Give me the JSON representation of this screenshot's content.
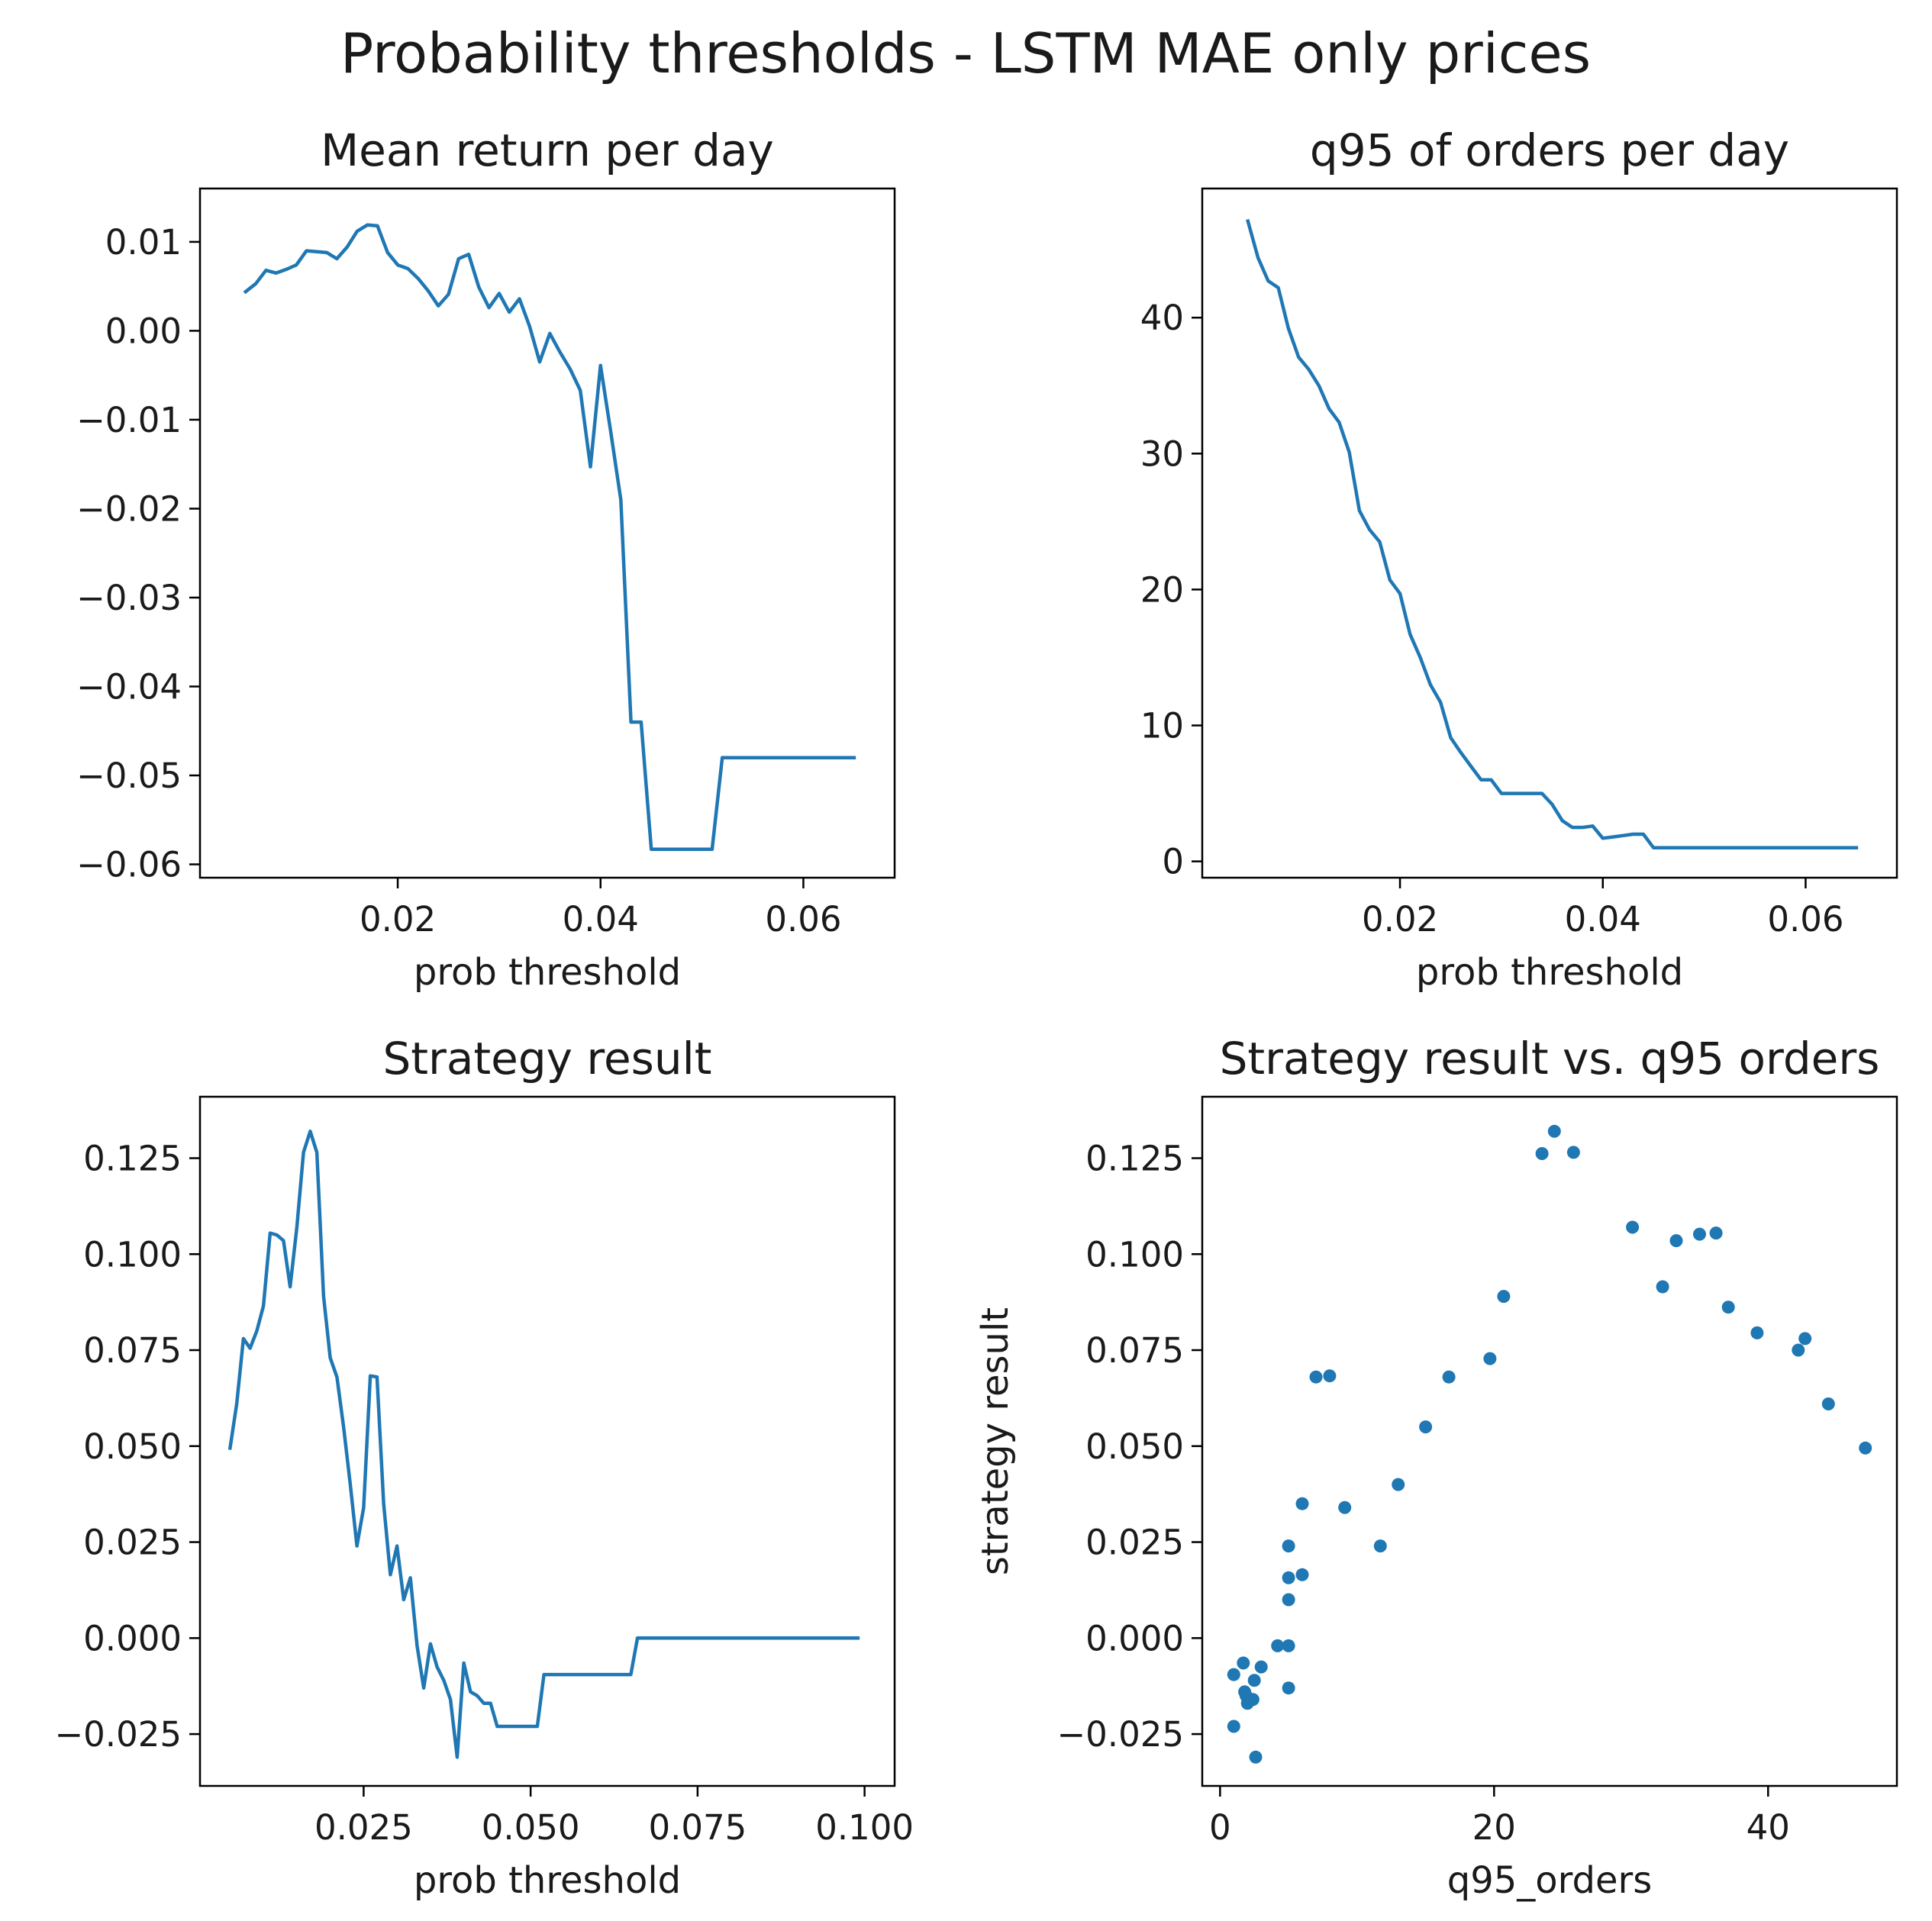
{
  "figure": {
    "title": "Probability thresholds - LSTM MAE only prices",
    "line_color": "#1f77b4"
  },
  "chart_data": [
    {
      "id": "mean-return",
      "type": "line",
      "title": "Mean return per day",
      "xlabel": "prob threshold",
      "ylabel": "",
      "xlim": [
        0.0005,
        0.069
      ],
      "ylim": [
        -0.0615,
        0.016
      ],
      "xticks": [
        {
          "v": 0.02,
          "label": "0.02"
        },
        {
          "v": 0.04,
          "label": "0.04"
        },
        {
          "v": 0.06,
          "label": "0.06"
        }
      ],
      "yticks": [
        {
          "v": 0.01,
          "label": "0.01"
        },
        {
          "v": 0.0,
          "label": "0.00"
        },
        {
          "v": -0.01,
          "label": "−0.01"
        },
        {
          "v": -0.02,
          "label": "−0.02"
        },
        {
          "v": -0.03,
          "label": "−0.03"
        },
        {
          "v": -0.04,
          "label": "−0.04"
        },
        {
          "v": -0.05,
          "label": "−0.05"
        },
        {
          "v": -0.06,
          "label": "−0.06"
        }
      ],
      "x": [
        0.005,
        0.006,
        0.007,
        0.008,
        0.009,
        0.01,
        0.011,
        0.012,
        0.013,
        0.014,
        0.015,
        0.016,
        0.017,
        0.018,
        0.019,
        0.02,
        0.021,
        0.022,
        0.023,
        0.024,
        0.025,
        0.026,
        0.027,
        0.028,
        0.029,
        0.03,
        0.031,
        0.032,
        0.033,
        0.034,
        0.035,
        0.036,
        0.037,
        0.038,
        0.039,
        0.04,
        0.041,
        0.042,
        0.043,
        0.044,
        0.045,
        0.046,
        0.047,
        0.048,
        0.049,
        0.05,
        0.051,
        0.052,
        0.053,
        0.054,
        0.055,
        0.056,
        0.057,
        0.058,
        0.059,
        0.06,
        0.061,
        0.062,
        0.063,
        0.064,
        0.065
      ],
      "y": [
        0.0044,
        0.0053,
        0.0068,
        0.0065,
        0.0069,
        0.0074,
        0.009,
        0.0089,
        0.0088,
        0.0081,
        0.0094,
        0.0112,
        0.0119,
        0.0118,
        0.0088,
        0.0074,
        0.007,
        0.0059,
        0.0045,
        0.0028,
        0.0041,
        0.0081,
        0.0086,
        0.0049,
        0.0026,
        0.0042,
        0.0021,
        0.0036,
        0.0005,
        -0.0035,
        -0.0003,
        -0.0024,
        -0.0043,
        -0.0067,
        -0.0153,
        -0.0039,
        -0.0113,
        -0.019,
        -0.044,
        -0.044,
        -0.0583,
        -0.0583,
        -0.0583,
        -0.0583,
        -0.0583,
        -0.0583,
        -0.0583,
        -0.048,
        -0.048,
        -0.048,
        -0.048,
        -0.048,
        -0.048,
        -0.048,
        -0.048,
        -0.048,
        -0.048,
        -0.048,
        -0.048,
        -0.048,
        -0.048
      ]
    },
    {
      "id": "q95-orders",
      "type": "line",
      "title": "q95 of orders per day",
      "xlabel": "prob threshold",
      "ylabel": "",
      "xlim": [
        0.0005,
        0.069
      ],
      "ylim": [
        -1.2,
        49.5
      ],
      "xticks": [
        {
          "v": 0.02,
          "label": "0.02"
        },
        {
          "v": 0.04,
          "label": "0.04"
        },
        {
          "v": 0.06,
          "label": "0.06"
        }
      ],
      "yticks": [
        {
          "v": 0,
          "label": "0"
        },
        {
          "v": 10,
          "label": "10"
        },
        {
          "v": 20,
          "label": "20"
        },
        {
          "v": 30,
          "label": "30"
        },
        {
          "v": 40,
          "label": "40"
        }
      ],
      "x": [
        0.005,
        0.006,
        0.007,
        0.008,
        0.009,
        0.01,
        0.011,
        0.012,
        0.013,
        0.014,
        0.015,
        0.016,
        0.017,
        0.018,
        0.019,
        0.02,
        0.021,
        0.022,
        0.023,
        0.024,
        0.025,
        0.026,
        0.027,
        0.028,
        0.029,
        0.03,
        0.031,
        0.032,
        0.033,
        0.034,
        0.035,
        0.036,
        0.037,
        0.038,
        0.039,
        0.04,
        0.041,
        0.042,
        0.043,
        0.044,
        0.045,
        0.046,
        0.047,
        0.048,
        0.049,
        0.05,
        0.051,
        0.052,
        0.053,
        0.054,
        0.055,
        0.056,
        0.057,
        0.058,
        0.059,
        0.06,
        0.061,
        0.062,
        0.063,
        0.064,
        0.065
      ],
      "y": [
        47.1,
        44.4,
        42.7,
        42.2,
        39.2,
        37.1,
        36.2,
        35.0,
        33.3,
        32.3,
        30.1,
        25.8,
        24.4,
        23.5,
        20.7,
        19.7,
        16.7,
        15.0,
        13.0,
        11.7,
        9.1,
        8.0,
        7.0,
        6.0,
        6.0,
        5.0,
        5.0,
        5.0,
        5.0,
        5.0,
        4.2,
        3.0,
        2.5,
        2.5,
        2.6,
        1.7,
        1.8,
        1.9,
        2.0,
        2.0,
        1.0,
        1.0,
        1.0,
        1.0,
        1.0,
        1.0,
        1.0,
        1.0,
        1.0,
        1.0,
        1.0,
        1.0,
        1.0,
        1.0,
        1.0,
        1.0,
        1.0,
        1.0,
        1.0,
        1.0,
        1.0
      ]
    },
    {
      "id": "strategy-result",
      "type": "line",
      "title": "Strategy result",
      "xlabel": "prob threshold",
      "ylabel": "",
      "xlim": [
        0.0005,
        0.1045
      ],
      "ylim": [
        -0.0385,
        0.141
      ],
      "xticks": [
        {
          "v": 0.025,
          "label": "0.025"
        },
        {
          "v": 0.05,
          "label": "0.050"
        },
        {
          "v": 0.075,
          "label": "0.075"
        },
        {
          "v": 0.1,
          "label": "0.100"
        }
      ],
      "yticks": [
        {
          "v": 0.125,
          "label": "0.125"
        },
        {
          "v": 0.1,
          "label": "0.100"
        },
        {
          "v": 0.075,
          "label": "0.075"
        },
        {
          "v": 0.05,
          "label": "0.050"
        },
        {
          "v": 0.025,
          "label": "0.025"
        },
        {
          "v": 0.0,
          "label": "0.000"
        },
        {
          "v": -0.025,
          "label": "−0.025"
        }
      ],
      "x": [
        0.005,
        0.006,
        0.007,
        0.008,
        0.009,
        0.01,
        0.011,
        0.012,
        0.013,
        0.014,
        0.015,
        0.016,
        0.017,
        0.018,
        0.019,
        0.02,
        0.021,
        0.022,
        0.023,
        0.024,
        0.025,
        0.026,
        0.027,
        0.028,
        0.029,
        0.03,
        0.031,
        0.032,
        0.033,
        0.034,
        0.035,
        0.036,
        0.037,
        0.038,
        0.039,
        0.04,
        0.041,
        0.042,
        0.043,
        0.044,
        0.045,
        0.046,
        0.047,
        0.048,
        0.049,
        0.05,
        0.051,
        0.052,
        0.065,
        0.066,
        0.099
      ],
      "y": [
        0.0495,
        0.061,
        0.078,
        0.0755,
        0.08,
        0.0865,
        0.1055,
        0.105,
        0.1035,
        0.0915,
        0.107,
        0.1265,
        0.132,
        0.1265,
        0.089,
        0.073,
        0.068,
        0.055,
        0.04,
        0.024,
        0.034,
        0.0683,
        0.068,
        0.035,
        0.0165,
        0.024,
        0.01,
        0.0157,
        -0.002,
        -0.013,
        -0.0015,
        -0.0075,
        -0.011,
        -0.016,
        -0.031,
        -0.0065,
        -0.014,
        -0.015,
        -0.017,
        -0.017,
        -0.023,
        -0.023,
        -0.023,
        -0.023,
        -0.023,
        -0.023,
        -0.023,
        -0.0095,
        -0.0095,
        0.0,
        0.0
      ]
    },
    {
      "id": "strategy-vs-q95",
      "type": "scatter",
      "title": "Strategy result vs. q95 orders",
      "xlabel": "q95_orders",
      "ylabel": "strategy result",
      "xlim": [
        -1.3,
        49.4
      ],
      "ylim": [
        -0.0385,
        0.141
      ],
      "xticks": [
        {
          "v": 0,
          "label": "0"
        },
        {
          "v": 20,
          "label": "20"
        },
        {
          "v": 40,
          "label": "40"
        }
      ],
      "yticks": [
        {
          "v": 0.125,
          "label": "0.125"
        },
        {
          "v": 0.1,
          "label": "0.100"
        },
        {
          "v": 0.075,
          "label": "0.075"
        },
        {
          "v": 0.05,
          "label": "0.050"
        },
        {
          "v": 0.025,
          "label": "0.025"
        },
        {
          "v": 0.0,
          "label": "0.000"
        },
        {
          "v": -0.025,
          "label": "−0.025"
        }
      ],
      "x": [
        47.1,
        44.4,
        42.7,
        42.2,
        39.2,
        37.1,
        36.2,
        35.0,
        33.3,
        32.3,
        30.1,
        25.8,
        24.4,
        23.5,
        20.7,
        19.7,
        16.7,
        15.0,
        13.0,
        11.7,
        9.1,
        8.0,
        7.0,
        6.0,
        6.0,
        5.0,
        5.0,
        5.0,
        5.0,
        5.0,
        4.2,
        3.0,
        2.5,
        2.4,
        2.6,
        1.7,
        1.8,
        1.9,
        2.0,
        1.0,
        1.0
      ],
      "y": [
        0.0495,
        0.061,
        0.078,
        0.075,
        0.0795,
        0.0862,
        0.1055,
        0.1052,
        0.1035,
        0.0915,
        0.107,
        0.1265,
        0.132,
        0.1262,
        0.089,
        0.0728,
        0.068,
        0.055,
        0.04,
        0.024,
        0.034,
        0.0683,
        0.068,
        0.035,
        0.0165,
        0.024,
        0.0157,
        0.01,
        -0.002,
        -0.013,
        -0.002,
        -0.0075,
        -0.011,
        -0.016,
        -0.031,
        -0.0065,
        -0.014,
        -0.015,
        -0.017,
        -0.0095,
        -0.023
      ]
    }
  ]
}
